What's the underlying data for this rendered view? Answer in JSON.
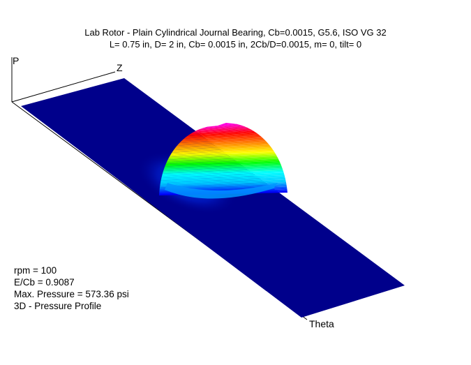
{
  "chart": {
    "title_line1": "Lab Rotor - Plain Cylindrical Journal Bearing, Cb=0.0015, G5.6, ISO VG 32",
    "title_line2": "L= 0.75 in, D= 2 in, Cb= 0.0015 in, 2Cb/D=0.0015, m= 0, tilt= 0"
  },
  "info": {
    "rpm": "rpm = 100",
    "ecb": "E/Cb = 0.9087",
    "max_pressure": "Max. Pressure = 573.36 psi",
    "description": "3D - Pressure Profile"
  },
  "chart_data": {
    "type": "surface3d",
    "title": "Lab Rotor - Plain Cylindrical Journal Bearing, Cb=0.0015, G5.6, ISO VG 32",
    "subtitle": "L= 0.75 in, D= 2 in, Cb= 0.0015 in, 2Cb/D=0.0015, m= 0, tilt= 0",
    "axes": {
      "p_label": "P",
      "z_label": "Z",
      "theta_label": "Theta"
    },
    "max_value": 573.36,
    "colormap": [
      "#00008b",
      "#0000ff",
      "#00c8ff",
      "#00ffff",
      "#00ff00",
      "#ffff00",
      "#ff8000",
      "#ff0000",
      "#ff00ff"
    ],
    "background_color": "#00008b"
  }
}
